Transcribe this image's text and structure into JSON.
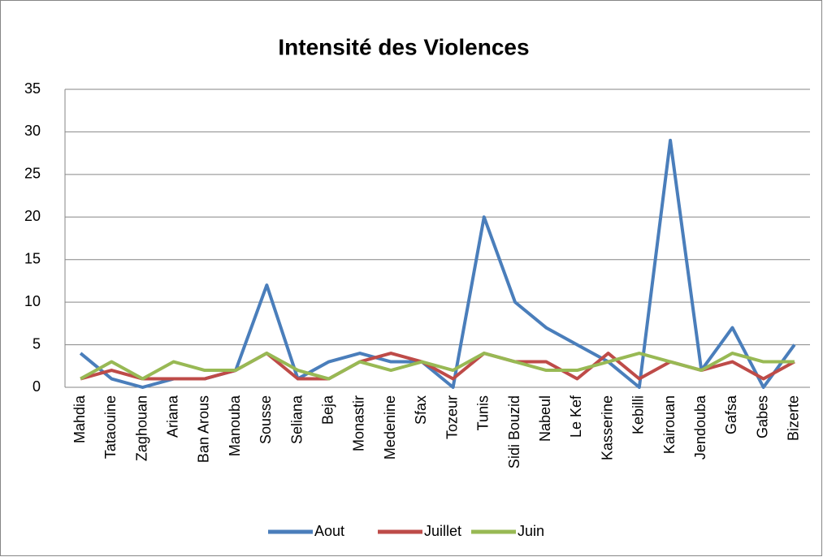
{
  "chart_data": {
    "type": "line",
    "title": "Intensité des Violences",
    "categories": [
      "Mahdia",
      "Tataouine",
      "Zaghouan",
      "Ariana",
      "Ban Arous",
      "Manouba",
      "Sousse",
      "Seliana",
      "Beja",
      "Monastir",
      "Medenine",
      "Sfax",
      "Tozeur",
      "Tunis",
      "Sidi Bouzid",
      "Nabeul",
      "Le Kef",
      "Kasserine",
      "Kebilli",
      "Kairouan",
      "Jendouba",
      "Gafsa",
      "Gabes",
      "Bizerte"
    ],
    "series": [
      {
        "name": "Aout",
        "color": "#4a7ebb",
        "values": [
          4,
          1,
          0,
          1,
          1,
          2,
          12,
          1,
          3,
          4,
          3,
          3,
          0,
          20,
          10,
          7,
          5,
          3,
          0,
          29,
          2,
          7,
          0,
          5
        ]
      },
      {
        "name": "Juillet",
        "color": "#be4b48",
        "values": [
          1,
          2,
          1,
          1,
          1,
          2,
          4,
          1,
          1,
          3,
          4,
          3,
          1,
          4,
          3,
          3,
          1,
          4,
          1,
          3,
          2,
          3,
          1,
          3
        ]
      },
      {
        "name": "Juin",
        "color": "#98b954",
        "values": [
          1,
          3,
          1,
          3,
          2,
          2,
          4,
          2,
          1,
          3,
          2,
          3,
          2,
          4,
          3,
          2,
          2,
          3,
          4,
          3,
          2,
          4,
          3,
          3
        ]
      }
    ],
    "ylim": [
      0,
      35
    ],
    "yticks": [
      0,
      5,
      10,
      15,
      20,
      25,
      30,
      35
    ],
    "grid": true,
    "legend": "bottom"
  }
}
